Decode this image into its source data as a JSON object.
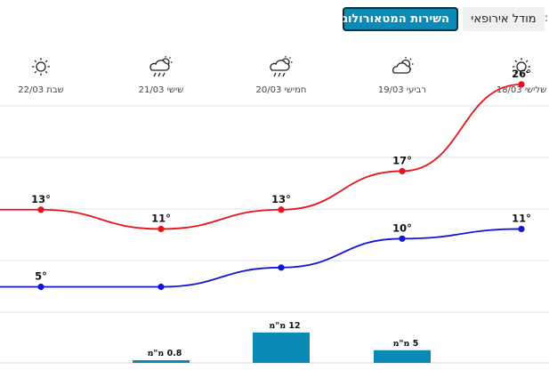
{
  "model_switch": {
    "ims_label": "השירות המטאורולוגי",
    "ecmwf_label": "מודל אירופאי",
    "separator": ":"
  },
  "days": [
    {
      "label": "שלישי 18/03",
      "icon": "sun-icon"
    },
    {
      "label": "רביעי 19/03",
      "icon": "partly-cloudy-icon"
    },
    {
      "label": "חמישי 20/03",
      "icon": "rain-cloud-icon"
    },
    {
      "label": "שישי 21/03",
      "icon": "rain-cloud-icon"
    },
    {
      "label": "שבת 22/03",
      "icon": "sun-icon"
    }
  ],
  "chart_data": {
    "type": "line",
    "categories": [
      "שלישי 18/03",
      "רביעי 19/03",
      "חמישי 20/03",
      "שישי 21/03",
      "שבת 22/03"
    ],
    "series": [
      {
        "values": [
          26,
          17,
          13,
          11,
          13
        ],
        "labels": [
          "26°",
          "17°",
          "13°",
          "11°",
          "13°"
        ],
        "color": "#e8141a"
      },
      {
        "values": [
          11,
          10,
          7,
          5,
          5
        ],
        "labels": [
          "11°",
          "10°",
          "",
          "",
          "5°"
        ],
        "color": "#1515d6"
      }
    ],
    "rain": {
      "values": [
        0,
        5,
        12,
        0.8,
        0
      ],
      "labels": [
        "",
        "5 מ\"מ",
        "12 מ\"מ",
        "0.8 מ\"מ",
        ""
      ],
      "color": "#0b8ab5"
    }
  }
}
